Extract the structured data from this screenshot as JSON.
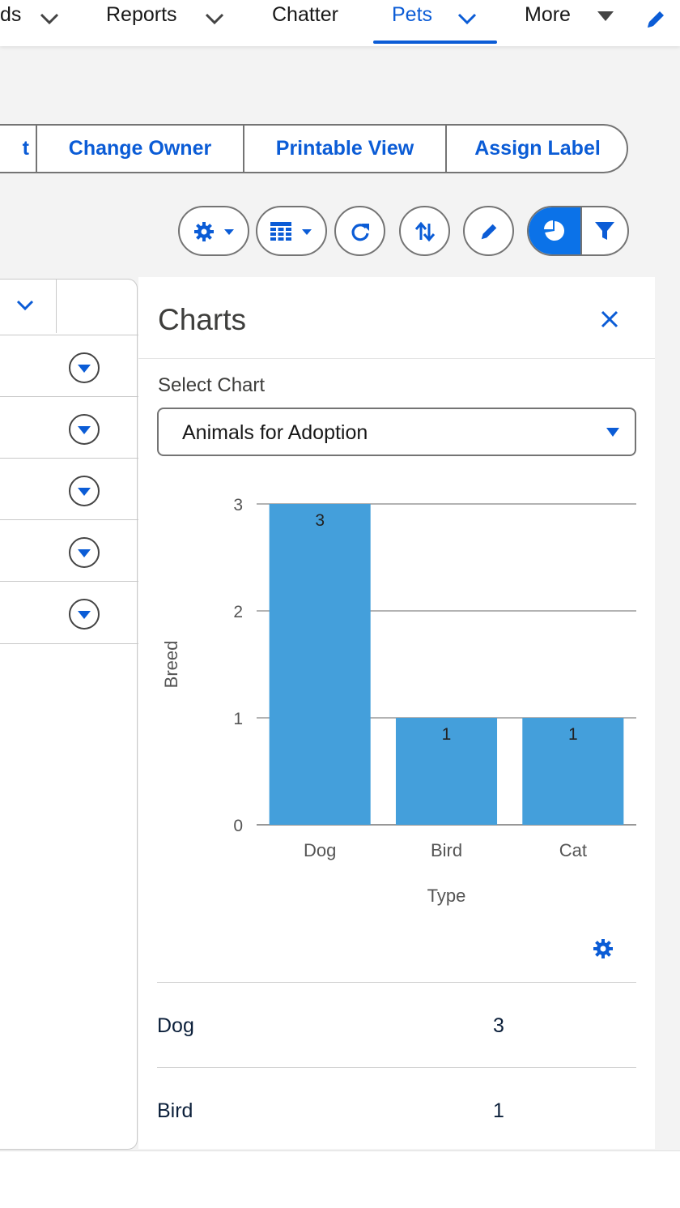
{
  "nav": {
    "items": [
      {
        "label": "ds"
      },
      {
        "label": "Reports"
      },
      {
        "label": "Chatter"
      },
      {
        "label": "Pets",
        "active": true
      },
      {
        "label": "More"
      }
    ],
    "active_color": "#0b5cd6"
  },
  "actions": {
    "buttons": [
      "t",
      "Change Owner",
      "Printable View",
      "Assign Label"
    ]
  },
  "toolbar": {
    "icons": [
      "gear-icon",
      "table-icon",
      "refresh-icon",
      "sort-icon",
      "pencil-icon",
      "pie-chart-icon",
      "filter-icon"
    ]
  },
  "charts_panel": {
    "title": "Charts",
    "select_label": "Select Chart",
    "selected_chart": "Animals for Adoption",
    "summary": [
      {
        "label": "Dog",
        "value": "3"
      },
      {
        "label": "Bird",
        "value": "1"
      }
    ]
  },
  "chart_data": {
    "type": "bar",
    "categories": [
      "Dog",
      "Bird",
      "Cat"
    ],
    "values": [
      3,
      1,
      1
    ],
    "xlabel": "Type",
    "ylabel": "Breed",
    "ylim": [
      0,
      3
    ],
    "yticks": [
      0,
      1,
      2,
      3
    ],
    "bar_color": "#449fdb",
    "grid": true
  }
}
